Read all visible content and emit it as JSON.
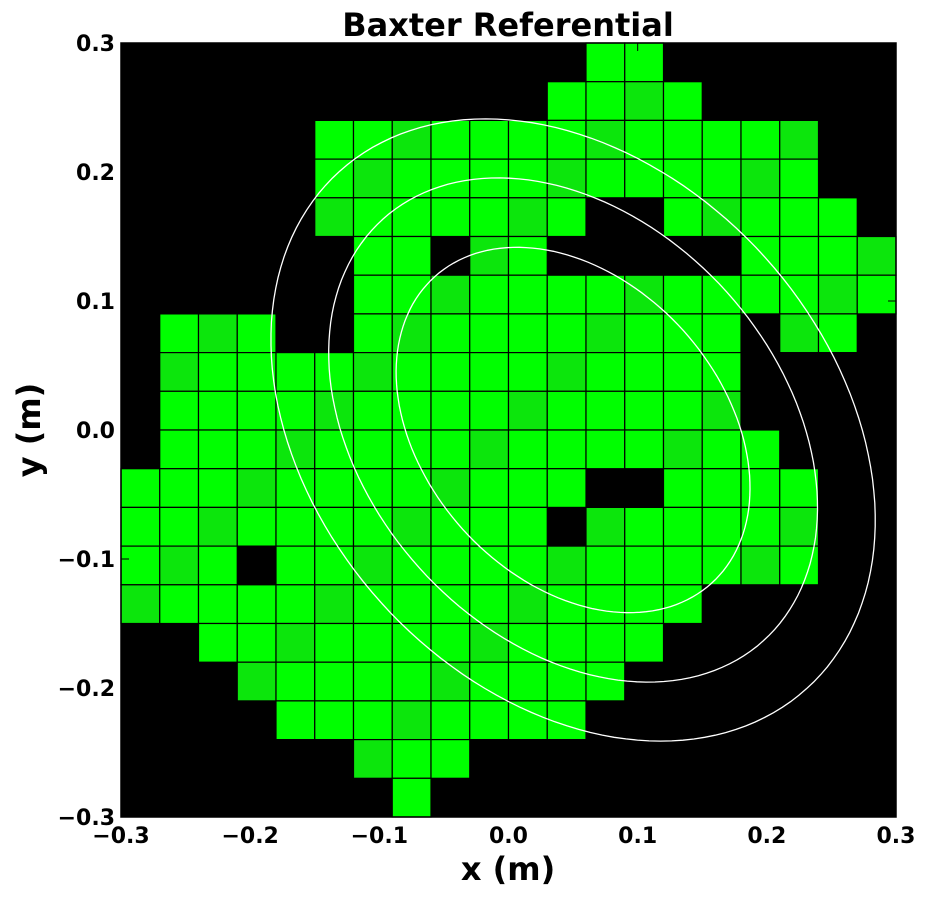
{
  "chart_data": {
    "type": "heatmap",
    "title": "Baxter Referential",
    "xlabel": "x (m)",
    "ylabel": "y (m)",
    "xlim": [
      -0.3,
      0.3
    ],
    "ylim": [
      -0.3,
      0.3
    ],
    "xticks": [
      -0.3,
      -0.2,
      -0.1,
      0.0,
      0.1,
      0.2,
      0.3
    ],
    "yticks": [
      -0.3,
      -0.2,
      -0.1,
      0.0,
      0.1,
      0.2,
      0.3
    ],
    "xtick_labels": [
      "−0.3",
      "−0.2",
      "−0.1",
      "0.0",
      "0.1",
      "0.2",
      "0.3"
    ],
    "ytick_labels": [
      "−0.3",
      "−0.2",
      "−0.1",
      "0.0",
      "0.1",
      "0.2",
      "0.3"
    ],
    "background_color": "#000000",
    "cell_color": "#00ff00",
    "cell_color_alt": "#0ce60c",
    "contour_color": "#ffffff",
    "grid": false,
    "cell_size": 0.03,
    "grid_x0": -0.3,
    "grid_y0": -0.3,
    "columns": 20,
    "rows": 20,
    "occupied_rows": [
      {
        "row": 19,
        "cols": [
          12,
          13
        ]
      },
      {
        "row": 18,
        "cols": [
          11,
          12,
          13,
          14
        ]
      },
      {
        "row": 17,
        "cols": [
          5,
          6,
          7,
          8,
          9,
          10,
          11,
          12,
          13,
          14,
          15,
          16,
          17
        ]
      },
      {
        "row": 16,
        "cols": [
          5,
          6,
          7,
          8,
          9,
          10,
          11,
          12,
          13,
          14,
          15,
          16,
          17
        ]
      },
      {
        "row": 15,
        "cols": [
          5,
          6,
          7,
          8,
          9,
          10,
          11,
          14,
          15,
          16,
          17,
          18
        ]
      },
      {
        "row": 14,
        "cols": [
          6,
          7,
          9,
          10,
          16,
          17,
          18,
          19
        ]
      },
      {
        "row": 13,
        "cols": [
          6,
          7,
          8,
          9,
          10,
          11,
          12,
          13,
          14,
          15,
          16,
          17,
          18,
          19
        ]
      },
      {
        "row": 12,
        "cols": [
          1,
          2,
          3,
          6,
          7,
          8,
          9,
          10,
          11,
          12,
          13,
          14,
          15,
          17,
          18
        ]
      },
      {
        "row": 11,
        "cols": [
          1,
          2,
          3,
          4,
          5,
          6,
          7,
          8,
          9,
          10,
          11,
          12,
          13,
          14,
          15
        ]
      },
      {
        "row": 10,
        "cols": [
          1,
          2,
          3,
          4,
          5,
          6,
          7,
          8,
          9,
          10,
          11,
          12,
          13,
          14,
          15
        ]
      },
      {
        "row": 9,
        "cols": [
          1,
          2,
          3,
          4,
          5,
          6,
          7,
          8,
          9,
          10,
          11,
          12,
          13,
          14,
          15,
          16
        ]
      },
      {
        "row": 8,
        "cols": [
          0,
          1,
          2,
          3,
          4,
          5,
          6,
          7,
          8,
          9,
          10,
          11,
          14,
          15,
          16,
          17
        ]
      },
      {
        "row": 7,
        "cols": [
          0,
          1,
          2,
          3,
          4,
          5,
          6,
          7,
          8,
          9,
          10,
          12,
          13,
          14,
          15,
          16,
          17
        ]
      },
      {
        "row": 6,
        "cols": [
          0,
          1,
          2,
          4,
          5,
          6,
          7,
          8,
          9,
          10,
          11,
          12,
          13,
          14,
          15,
          16,
          17
        ]
      },
      {
        "row": 5,
        "cols": [
          0,
          1,
          2,
          3,
          4,
          5,
          6,
          7,
          8,
          9,
          10,
          11,
          12,
          13,
          14
        ]
      },
      {
        "row": 4,
        "cols": [
          2,
          3,
          4,
          5,
          6,
          7,
          8,
          9,
          10,
          11,
          12,
          13
        ]
      },
      {
        "row": 3,
        "cols": [
          3,
          4,
          5,
          6,
          7,
          8,
          9,
          10,
          11,
          12
        ]
      },
      {
        "row": 2,
        "cols": [
          4,
          5,
          6,
          7,
          8,
          9,
          10,
          11
        ]
      },
      {
        "row": 1,
        "cols": [
          6,
          7,
          8
        ]
      },
      {
        "row": 0,
        "cols": [
          7
        ]
      }
    ],
    "contours": [
      {
        "name": "inner",
        "center": [
          0.05,
          0.0
        ],
        "semi_axes": [
          0.115,
          0.16
        ],
        "angle_deg": 42
      },
      {
        "name": "middle",
        "center": [
          0.05,
          0.0
        ],
        "semi_axes": [
          0.16,
          0.22
        ],
        "angle_deg": 42
      },
      {
        "name": "outer",
        "center": [
          0.05,
          0.0
        ],
        "semi_axes": [
          0.2,
          0.27
        ],
        "angle_deg": 42
      }
    ]
  }
}
